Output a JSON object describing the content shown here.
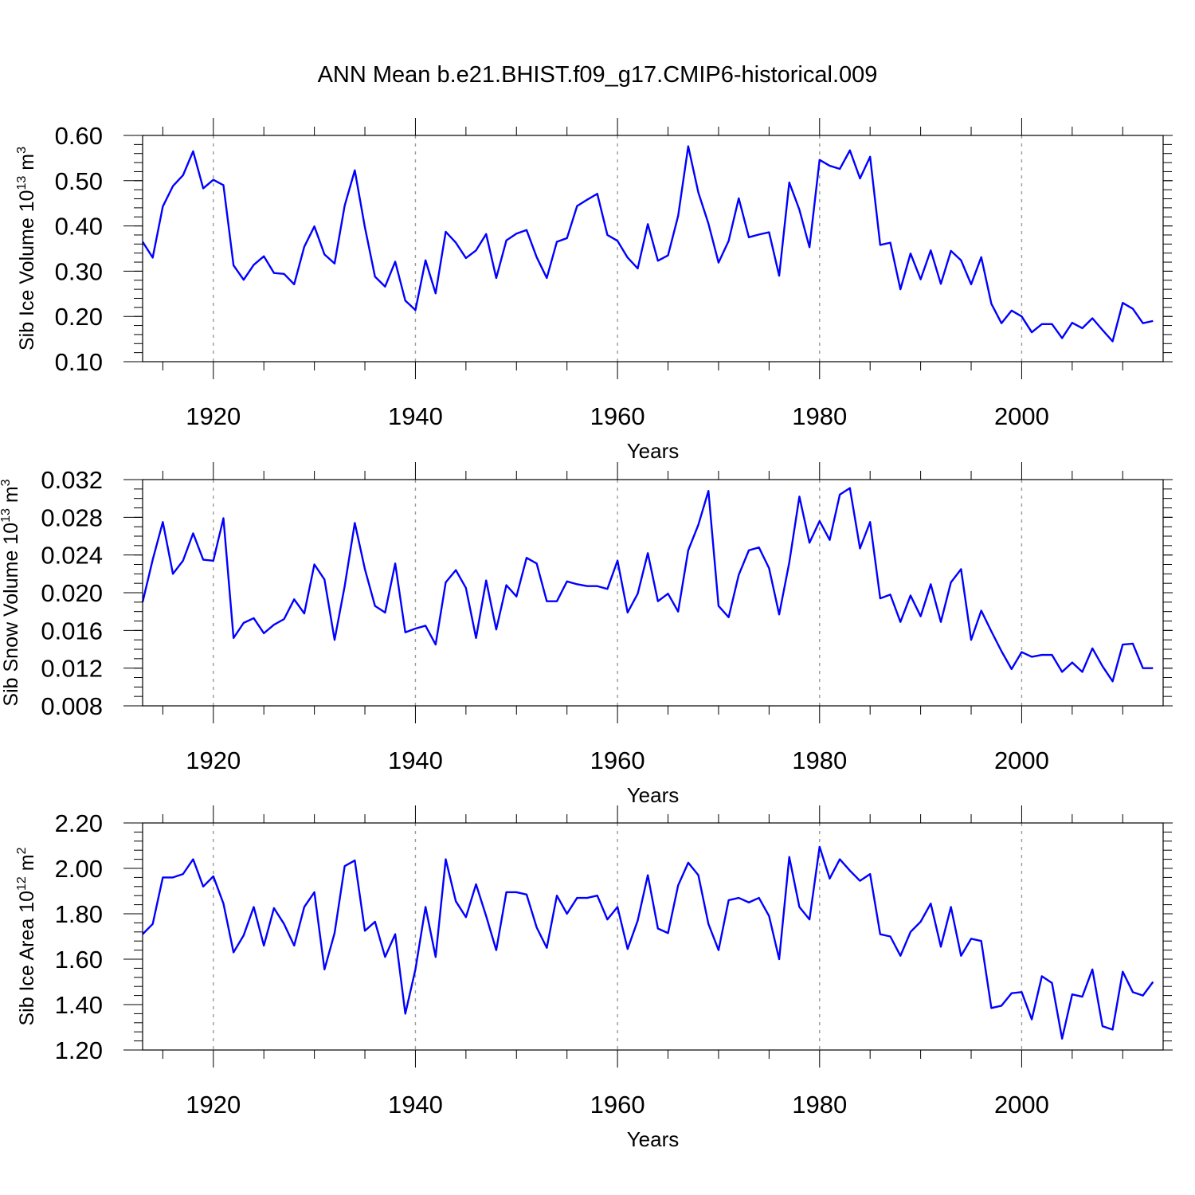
{
  "figure": {
    "title": "ANN Mean b.e21.BHIST.f09_g17.CMIP6-historical.009",
    "line_color": "#0000ff"
  },
  "chart_data": [
    {
      "type": "line",
      "title": "",
      "xlabel": "Years",
      "ylabel_main": "Sib Ice Volume 10",
      "ylabel_exp": "13",
      "ylabel_unit": " m",
      "ylabel_unit_exp": "3",
      "xlim": [
        1913,
        2014
      ],
      "ylim": [
        0.1,
        0.6
      ],
      "yticks": [
        0.1,
        0.2,
        0.3,
        0.4,
        0.5,
        0.6
      ],
      "ytick_labels": [
        "0.10",
        "0.20",
        "0.30",
        "0.40",
        "0.50",
        "0.60"
      ],
      "ytick_minor_step": 0.02,
      "xticks": [
        1920,
        1940,
        1960,
        1980,
        2000
      ],
      "xtick_labels": [
        "1920",
        "1940",
        "1960",
        "1980",
        "2000"
      ],
      "xtick_minor_step": 5,
      "grid": "vertical dashed at major x ticks",
      "series": [
        {
          "name": "Sib Ice Volume",
          "x_start": 1913,
          "values": [
            0.365,
            0.33,
            0.443,
            0.488,
            0.512,
            0.565,
            0.483,
            0.502,
            0.49,
            0.313,
            0.281,
            0.314,
            0.333,
            0.296,
            0.294,
            0.271,
            0.354,
            0.399,
            0.337,
            0.317,
            0.445,
            0.523,
            0.397,
            0.288,
            0.266,
            0.321,
            0.235,
            0.214,
            0.324,
            0.251,
            0.387,
            0.363,
            0.329,
            0.346,
            0.382,
            0.285,
            0.368,
            0.383,
            0.391,
            0.331,
            0.285,
            0.365,
            0.373,
            0.444,
            0.458,
            0.471,
            0.38,
            0.367,
            0.33,
            0.306,
            0.404,
            0.323,
            0.335,
            0.422,
            0.576,
            0.474,
            0.405,
            0.319,
            0.367,
            0.461,
            0.375,
            0.381,
            0.386,
            0.29,
            0.496,
            0.436,
            0.353,
            0.546,
            0.533,
            0.526,
            0.567,
            0.505,
            0.553,
            0.358,
            0.363,
            0.26,
            0.339,
            0.282,
            0.346,
            0.272,
            0.345,
            0.324,
            0.271,
            0.331,
            0.228,
            0.185,
            0.213,
            0.2,
            0.165,
            0.183,
            0.183,
            0.152,
            0.186,
            0.174,
            0.196,
            0.17,
            0.145,
            0.23,
            0.217,
            0.185,
            0.19
          ]
        }
      ]
    },
    {
      "type": "line",
      "title": "",
      "xlabel": "Years",
      "ylabel_main": "Sib Snow Volume 10",
      "ylabel_exp": "13",
      "ylabel_unit": " m",
      "ylabel_unit_exp": "3",
      "xlim": [
        1913,
        2014
      ],
      "ylim": [
        0.008,
        0.032
      ],
      "yticks": [
        0.008,
        0.012,
        0.016,
        0.02,
        0.024,
        0.028,
        0.032
      ],
      "ytick_labels": [
        "0.008",
        "0.012",
        "0.016",
        "0.020",
        "0.024",
        "0.028",
        "0.032"
      ],
      "ytick_minor_step": 0.001,
      "xticks": [
        1920,
        1940,
        1960,
        1980,
        2000
      ],
      "xtick_labels": [
        "1920",
        "1940",
        "1960",
        "1980",
        "2000"
      ],
      "xtick_minor_step": 5,
      "grid": "vertical dashed at major x ticks",
      "series": [
        {
          "name": "Sib Snow Volume",
          "x_start": 1913,
          "values": [
            0.019,
            0.0235,
            0.0275,
            0.022,
            0.0234,
            0.0263,
            0.0235,
            0.0234,
            0.0279,
            0.0152,
            0.0168,
            0.0173,
            0.0157,
            0.0166,
            0.0172,
            0.0193,
            0.0178,
            0.023,
            0.0214,
            0.015,
            0.0207,
            0.0274,
            0.0225,
            0.0186,
            0.0179,
            0.0231,
            0.0158,
            0.0162,
            0.0165,
            0.0145,
            0.0211,
            0.0224,
            0.0205,
            0.0152,
            0.0213,
            0.0161,
            0.0208,
            0.0196,
            0.0237,
            0.0231,
            0.0191,
            0.0191,
            0.0212,
            0.0209,
            0.0207,
            0.0207,
            0.0204,
            0.0234,
            0.0179,
            0.0199,
            0.0242,
            0.0191,
            0.0199,
            0.018,
            0.0245,
            0.0272,
            0.0308,
            0.0186,
            0.0174,
            0.0219,
            0.0245,
            0.0248,
            0.0226,
            0.0177,
            0.0232,
            0.0302,
            0.0253,
            0.0276,
            0.0256,
            0.0304,
            0.0311,
            0.0247,
            0.0275,
            0.0194,
            0.0198,
            0.0169,
            0.0197,
            0.0175,
            0.0209,
            0.0169,
            0.0211,
            0.0225,
            0.015,
            0.0181,
            0.0159,
            0.0138,
            0.0119,
            0.0137,
            0.0132,
            0.0134,
            0.0134,
            0.0116,
            0.0126,
            0.0116,
            0.0141,
            0.0122,
            0.0106,
            0.0145,
            0.0146,
            0.012,
            0.012
          ]
        }
      ]
    },
    {
      "type": "line",
      "title": "",
      "xlabel": "Years",
      "ylabel_main": "Sib Ice Area 10",
      "ylabel_exp": "12",
      "ylabel_unit": " m",
      "ylabel_unit_exp": "2",
      "xlim": [
        1913,
        2014
      ],
      "ylim": [
        1.2,
        2.2
      ],
      "yticks": [
        1.2,
        1.4,
        1.6,
        1.8,
        2.0,
        2.2
      ],
      "ytick_labels": [
        "1.20",
        "1.40",
        "1.60",
        "1.80",
        "2.00",
        "2.20"
      ],
      "ytick_minor_step": 0.04,
      "xticks": [
        1920,
        1940,
        1960,
        1980,
        2000
      ],
      "xtick_labels": [
        "1920",
        "1940",
        "1960",
        "1980",
        "2000"
      ],
      "xtick_minor_step": 5,
      "grid": "vertical dashed at major x ticks",
      "series": [
        {
          "name": "Sib Ice Area",
          "x_start": 1913,
          "values": [
            1.71,
            1.755,
            1.96,
            1.96,
            1.975,
            2.04,
            1.92,
            1.965,
            1.845,
            1.63,
            1.705,
            1.83,
            1.66,
            1.825,
            1.755,
            1.66,
            1.83,
            1.895,
            1.555,
            1.715,
            2.01,
            2.035,
            1.725,
            1.765,
            1.61,
            1.71,
            1.36,
            1.555,
            1.83,
            1.61,
            2.04,
            1.855,
            1.785,
            1.93,
            1.79,
            1.64,
            1.895,
            1.895,
            1.885,
            1.74,
            1.65,
            1.88,
            1.8,
            1.87,
            1.87,
            1.88,
            1.775,
            1.83,
            1.645,
            1.77,
            1.97,
            1.735,
            1.715,
            1.925,
            2.025,
            1.97,
            1.755,
            1.64,
            1.86,
            1.87,
            1.85,
            1.87,
            1.79,
            1.6,
            2.05,
            1.83,
            1.775,
            2.095,
            1.955,
            2.04,
            1.99,
            1.945,
            1.975,
            1.71,
            1.7,
            1.615,
            1.72,
            1.765,
            1.845,
            1.655,
            1.83,
            1.615,
            1.69,
            1.68,
            1.385,
            1.395,
            1.45,
            1.455,
            1.335,
            1.525,
            1.495,
            1.25,
            1.445,
            1.435,
            1.555,
            1.305,
            1.29,
            1.545,
            1.455,
            1.44,
            1.5
          ]
        }
      ]
    }
  ]
}
